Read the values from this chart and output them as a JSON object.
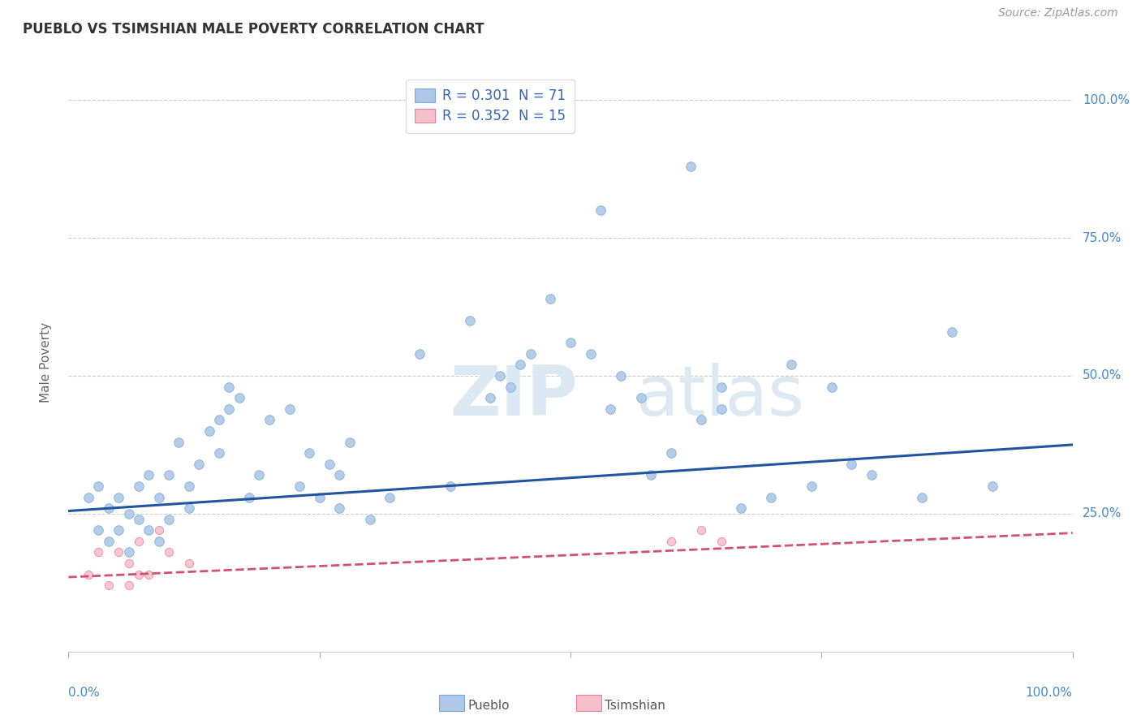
{
  "title": "PUEBLO VS TSIMSHIAN MALE POVERTY CORRELATION CHART",
  "source": "Source: ZipAtlas.com",
  "ylabel": "Male Poverty",
  "ytick_labels": [
    "100.0%",
    "75.0%",
    "50.0%",
    "25.0%"
  ],
  "ytick_values": [
    1.0,
    0.75,
    0.5,
    0.25
  ],
  "xlim": [
    0.0,
    1.0
  ],
  "ylim": [
    0.0,
    1.05
  ],
  "pueblo_color": "#adc8e8",
  "pueblo_edge": "#7aaad0",
  "tsimshian_color": "#f5c0cc",
  "tsimshian_edge": "#e8819a",
  "trend_pueblo_color": "#2255a0",
  "trend_tsimshian_color": "#d45070",
  "legend_pueblo_label": "R = 0.301  N = 71",
  "legend_tsimshian_label": "R = 0.352  N = 15",
  "watermark_zip": "ZIP",
  "watermark_atlas": "atlas",
  "pueblo_x": [
    0.02,
    0.03,
    0.03,
    0.04,
    0.04,
    0.05,
    0.05,
    0.06,
    0.06,
    0.07,
    0.07,
    0.08,
    0.08,
    0.09,
    0.09,
    0.1,
    0.1,
    0.11,
    0.12,
    0.12,
    0.13,
    0.14,
    0.15,
    0.15,
    0.16,
    0.16,
    0.17,
    0.18,
    0.19,
    0.2,
    0.22,
    0.23,
    0.24,
    0.25,
    0.26,
    0.27,
    0.27,
    0.28,
    0.3,
    0.32,
    0.35,
    0.38,
    0.4,
    0.42,
    0.43,
    0.44,
    0.45,
    0.46,
    0.48,
    0.5,
    0.52,
    0.53,
    0.54,
    0.55,
    0.57,
    0.58,
    0.6,
    0.62,
    0.63,
    0.65,
    0.65,
    0.67,
    0.7,
    0.72,
    0.74,
    0.76,
    0.78,
    0.8,
    0.85,
    0.88,
    0.92
  ],
  "pueblo_y": [
    0.28,
    0.3,
    0.22,
    0.26,
    0.2,
    0.28,
    0.22,
    0.25,
    0.18,
    0.3,
    0.24,
    0.32,
    0.22,
    0.28,
    0.2,
    0.32,
    0.24,
    0.38,
    0.3,
    0.26,
    0.34,
    0.4,
    0.36,
    0.42,
    0.44,
    0.48,
    0.46,
    0.28,
    0.32,
    0.42,
    0.44,
    0.3,
    0.36,
    0.28,
    0.34,
    0.32,
    0.26,
    0.38,
    0.24,
    0.28,
    0.54,
    0.3,
    0.6,
    0.46,
    0.5,
    0.48,
    0.52,
    0.54,
    0.64,
    0.56,
    0.54,
    0.8,
    0.44,
    0.5,
    0.46,
    0.32,
    0.36,
    0.88,
    0.42,
    0.48,
    0.44,
    0.26,
    0.28,
    0.52,
    0.3,
    0.48,
    0.34,
    0.32,
    0.28,
    0.58,
    0.3
  ],
  "tsimshian_x": [
    0.02,
    0.03,
    0.04,
    0.05,
    0.06,
    0.06,
    0.07,
    0.07,
    0.08,
    0.09,
    0.1,
    0.12,
    0.6,
    0.63,
    0.65
  ],
  "tsimshian_y": [
    0.14,
    0.18,
    0.12,
    0.18,
    0.16,
    0.12,
    0.2,
    0.14,
    0.14,
    0.22,
    0.18,
    0.16,
    0.2,
    0.22,
    0.2
  ],
  "pueblo_trend_x": [
    0.0,
    1.0
  ],
  "pueblo_trend_y": [
    0.255,
    0.375
  ],
  "tsimshian_trend_x": [
    0.0,
    1.0
  ],
  "tsimshian_trend_y": [
    0.135,
    0.215
  ],
  "background_color": "#ffffff",
  "grid_color": "#cccccc",
  "marker_size": 70,
  "marker_size_tsimshian": 55,
  "bottom_legend_pueblo": "Pueblo",
  "bottom_legend_tsimshian": "Tsimshian"
}
